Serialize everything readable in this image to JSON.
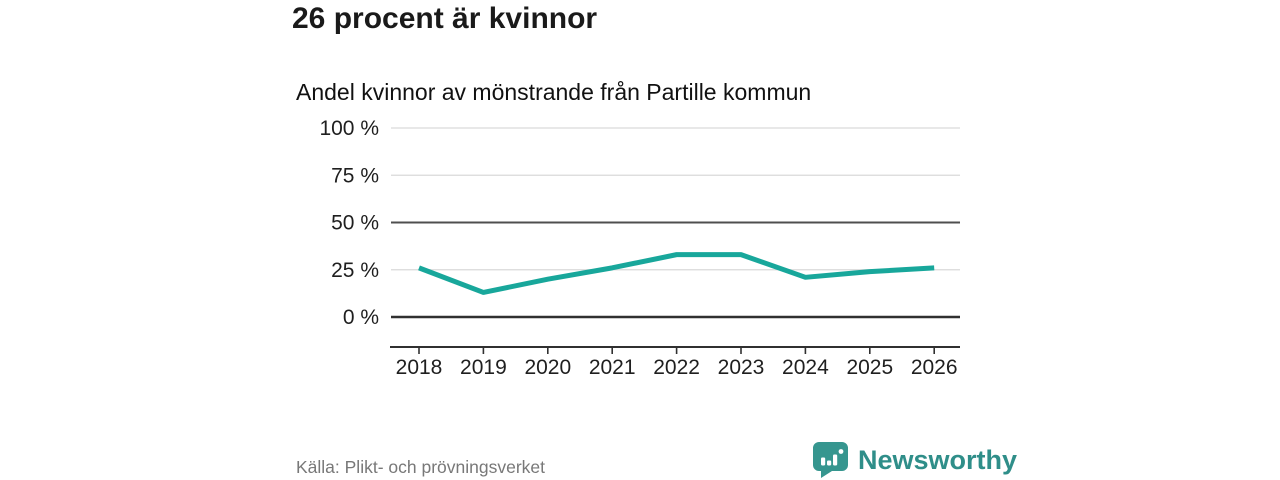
{
  "header": {
    "title": "26 procent är kvinnor",
    "subtitle": "Andel kvinnor av mönstrande från Partille kommun"
  },
  "chart_data": {
    "type": "line",
    "x": [
      2018,
      2019,
      2020,
      2021,
      2022,
      2023,
      2024,
      2025,
      2026
    ],
    "series": [
      {
        "name": "Andel kvinnor av mönstrande från Partille kommun",
        "values": [
          26,
          13,
          20,
          26,
          33,
          33,
          21,
          24,
          26
        ]
      }
    ],
    "unit": "%",
    "ylim": [
      0,
      100
    ],
    "yticks": [
      0,
      25,
      50,
      75,
      100
    ],
    "ytick_labels": [
      "0 %",
      "25 %",
      "50 %",
      "75 %",
      "100 %"
    ],
    "xtick_labels": [
      "2018",
      "2019",
      "2020",
      "2021",
      "2022",
      "2023",
      "2024",
      "2025",
      "2026"
    ],
    "emphasized_gridlines": [
      0,
      50
    ],
    "grid": true,
    "legend": "none",
    "line_color": "#18a79b"
  },
  "footer": {
    "source": "Källa: Plikt- och prövningsverket",
    "brand": {
      "name": "Newsworthy",
      "icon": "newsworthy-chart-bubble-icon",
      "text_color": "#2f8e89",
      "icon_color": "#36968f"
    }
  },
  "colors": {
    "background": "#ffffff",
    "title_text": "#1a1a1a",
    "axis_text": "#1f1f1f",
    "gridline_light": "#d9d9d9",
    "gridline_emphasis": "#4f4f4f",
    "baseline": "#303030",
    "source_text": "#787878",
    "accent_teal": "#18a79b"
  }
}
